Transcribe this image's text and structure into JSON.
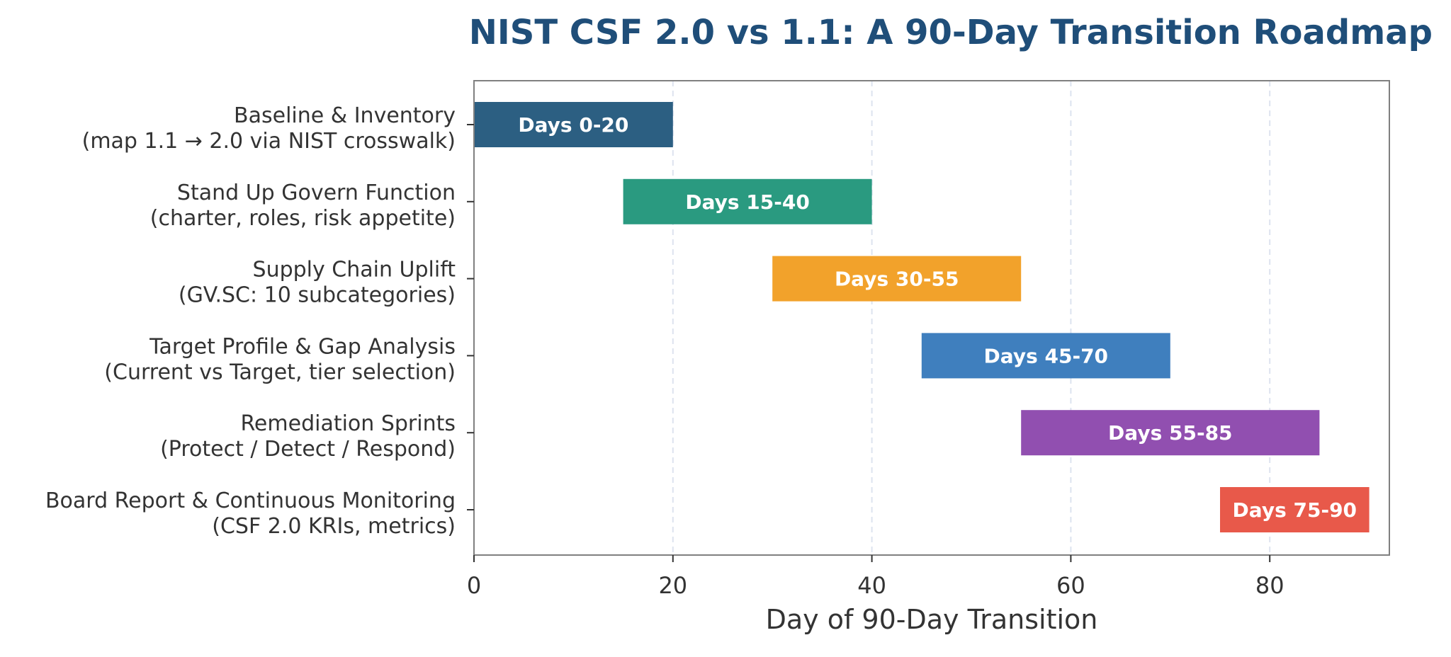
{
  "chart_data": {
    "type": "bar",
    "orientation": "horizontal-gantt",
    "title": "NIST CSF 2.0 vs 1.1: A 90-Day Transition Roadmap",
    "title_color": "#1f4e79",
    "xlabel": "Day of 90-Day Transition",
    "ylabel": "",
    "xlim": [
      0,
      92
    ],
    "xticks": [
      0,
      20,
      40,
      60,
      80
    ],
    "grid": "x-dashed",
    "grid_color": "#dde3ef",
    "legend": "none",
    "tasks": [
      {
        "label_line1": "Baseline & Inventory",
        "label_line2": "(map 1.1 → 2.0 via NIST crosswalk)",
        "start": 0,
        "end": 20,
        "bar_label": "Days 0-20",
        "color": "#2c5f82"
      },
      {
        "label_line1": "Stand Up Govern Function",
        "label_line2": "(charter, roles, risk appetite)",
        "start": 15,
        "end": 40,
        "bar_label": "Days 15-40",
        "color": "#2a9a80"
      },
      {
        "label_line1": "Supply Chain Uplift",
        "label_line2": "(GV.SC: 10 subcategories)",
        "start": 30,
        "end": 55,
        "bar_label": "Days 30-55",
        "color": "#f2a22b"
      },
      {
        "label_line1": "Target Profile & Gap Analysis",
        "label_line2": "(Current vs Target, tier selection)",
        "start": 45,
        "end": 70,
        "bar_label": "Days 45-70",
        "color": "#3f7fbe"
      },
      {
        "label_line1": "Remediation Sprints",
        "label_line2": "(Protect / Detect / Respond)",
        "start": 55,
        "end": 85,
        "bar_label": "Days 55-85",
        "color": "#914fb0"
      },
      {
        "label_line1": "Board Report & Continuous Monitoring",
        "label_line2": "(CSF 2.0 KRIs, metrics)",
        "start": 75,
        "end": 90,
        "bar_label": "Days 75-90",
        "color": "#e8594a"
      }
    ]
  }
}
